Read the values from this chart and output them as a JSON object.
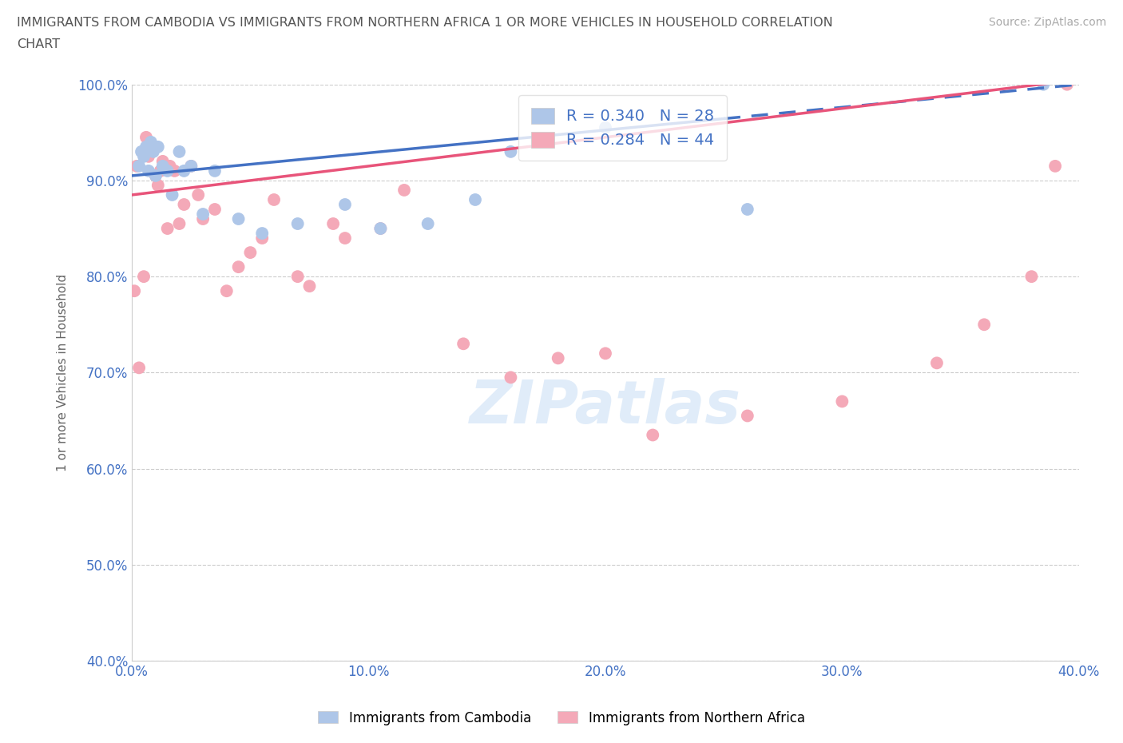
{
  "title_line1": "IMMIGRANTS FROM CAMBODIA VS IMMIGRANTS FROM NORTHERN AFRICA 1 OR MORE VEHICLES IN HOUSEHOLD CORRELATION",
  "title_line2": "CHART",
  "source": "Source: ZipAtlas.com",
  "ylabel": "1 or more Vehicles in Household",
  "xlim": [
    0.0,
    40.0
  ],
  "ylim": [
    40.0,
    100.0
  ],
  "xticks": [
    0.0,
    10.0,
    20.0,
    30.0,
    40.0
  ],
  "yticks": [
    40.0,
    50.0,
    60.0,
    70.0,
    80.0,
    90.0,
    100.0
  ],
  "xtick_labels": [
    "0.0%",
    "10.0%",
    "20.0%",
    "30.0%",
    "40.0%"
  ],
  "ytick_labels": [
    "40.0%",
    "50.0%",
    "60.0%",
    "70.0%",
    "80.0%",
    "90.0%",
    "100.0%"
  ],
  "grid_color": "#cccccc",
  "background_color": "#ffffff",
  "cambodia_color": "#aec6e8",
  "northern_africa_color": "#f4a9b8",
  "cambodia_line_color": "#4472c4",
  "northern_africa_line_color": "#e8547a",
  "axis_text_color": "#4472c4",
  "title_color": "#555555",
  "R_cambodia": 0.34,
  "N_cambodia": 28,
  "R_northern_africa": 0.284,
  "N_northern_africa": 44,
  "watermark": "ZIPatlas",
  "cambodia_line_x0": 0.0,
  "cambodia_line_y0": 90.5,
  "cambodia_line_x1": 40.0,
  "cambodia_line_y1": 100.0,
  "cambodia_line_solid_end": 25.0,
  "northern_africa_line_x0": 0.0,
  "northern_africa_line_y0": 88.5,
  "northern_africa_line_x1": 40.0,
  "northern_africa_line_y1": 100.5,
  "cambodia_x": [
    0.3,
    0.4,
    0.5,
    0.6,
    0.7,
    0.8,
    0.9,
    1.0,
    1.1,
    1.3,
    1.5,
    1.7,
    2.0,
    2.2,
    2.5,
    3.0,
    3.5,
    4.5,
    5.5,
    7.0,
    9.0,
    10.5,
    12.5,
    14.5,
    16.0,
    20.0,
    26.0,
    38.5
  ],
  "cambodia_y": [
    91.5,
    93.0,
    92.5,
    93.5,
    91.0,
    94.0,
    93.0,
    90.5,
    93.5,
    91.5,
    91.0,
    88.5,
    93.0,
    91.0,
    91.5,
    86.5,
    91.0,
    86.0,
    84.5,
    85.5,
    87.5,
    85.0,
    85.5,
    88.0,
    93.0,
    95.5,
    87.0,
    100.0
  ],
  "northern_africa_x": [
    0.1,
    0.2,
    0.3,
    0.5,
    0.6,
    0.7,
    0.8,
    0.9,
    1.0,
    1.1,
    1.2,
    1.3,
    1.5,
    1.6,
    1.8,
    2.0,
    2.2,
    2.5,
    2.8,
    3.0,
    3.5,
    4.0,
    4.5,
    5.0,
    5.5,
    6.0,
    7.0,
    7.5,
    8.5,
    9.0,
    10.5,
    11.5,
    14.0,
    16.0,
    18.0,
    20.0,
    22.0,
    26.0,
    30.0,
    34.0,
    36.0,
    38.0,
    39.0,
    39.5
  ],
  "northern_africa_y": [
    78.5,
    91.5,
    70.5,
    80.0,
    94.5,
    92.5,
    93.0,
    93.5,
    90.5,
    89.5,
    91.0,
    92.0,
    85.0,
    91.5,
    91.0,
    85.5,
    87.5,
    91.5,
    88.5,
    86.0,
    87.0,
    78.5,
    81.0,
    82.5,
    84.0,
    88.0,
    80.0,
    79.0,
    85.5,
    84.0,
    85.0,
    89.0,
    73.0,
    69.5,
    71.5,
    72.0,
    63.5,
    65.5,
    67.0,
    71.0,
    75.0,
    80.0,
    91.5,
    100.0
  ]
}
